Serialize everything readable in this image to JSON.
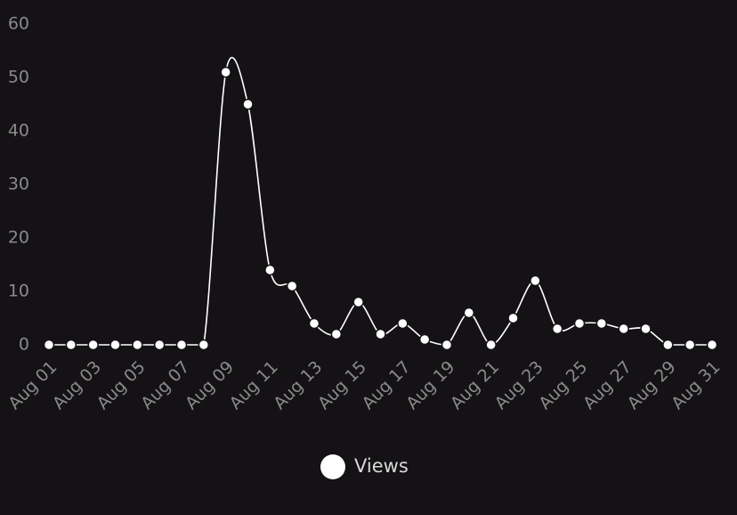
{
  "chart_data": {
    "type": "line",
    "categories": [
      "Aug 01",
      null,
      "Aug 03",
      null,
      "Aug 05",
      null,
      "Aug 07",
      null,
      "Aug 09",
      null,
      "Aug 11",
      null,
      "Aug 13",
      null,
      "Aug 15",
      null,
      "Aug 17",
      null,
      "Aug 19",
      null,
      "Aug 21",
      null,
      "Aug 23",
      null,
      "Aug 25",
      null,
      "Aug 27",
      null,
      "Aug 29",
      null,
      "Aug 31"
    ],
    "series": [
      {
        "name": "Views",
        "color": "#ffffff",
        "values": [
          0,
          0,
          0,
          0,
          0,
          0,
          0,
          0,
          51,
          45,
          14,
          11,
          4,
          2,
          8,
          2,
          4,
          1,
          0,
          6,
          0,
          5,
          12,
          3,
          4,
          4,
          3,
          3,
          0,
          0,
          0
        ]
      }
    ],
    "ylim": [
      0,
      60
    ],
    "yticks": [
      0,
      10,
      20,
      30,
      40,
      50,
      60
    ],
    "grid": false,
    "legend": "bottom"
  }
}
